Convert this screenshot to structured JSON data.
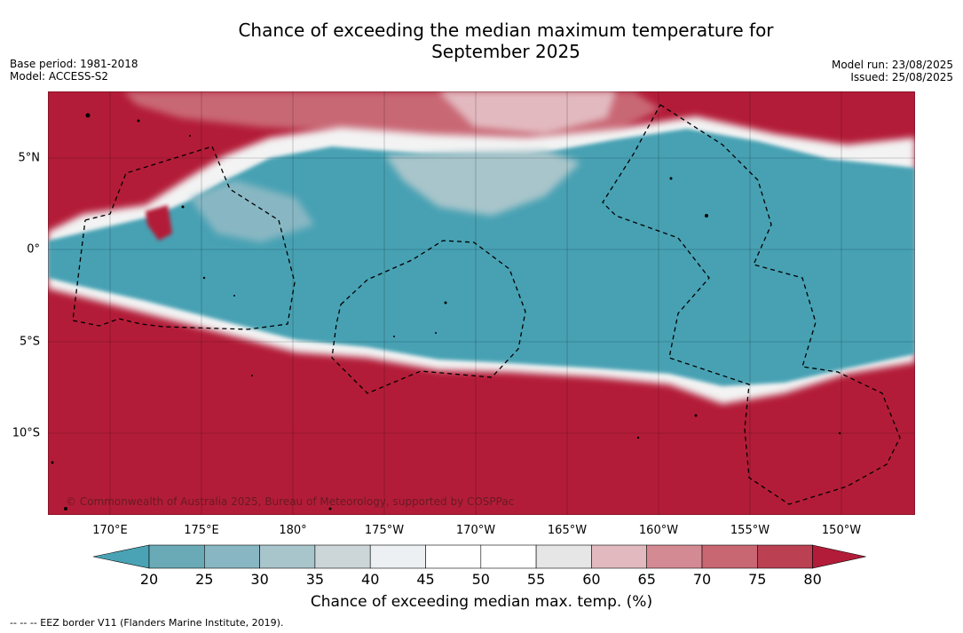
{
  "title_line1": "Chance of exceeding the median maximum temperature for",
  "title_line2": "September 2025",
  "meta_left": {
    "base_period": "Base period: 1981-2018",
    "model": "Model: ACCESS-S2"
  },
  "meta_right": {
    "model_run": "Model run: 23/08/2025",
    "issued": "Issued: 25/08/2025"
  },
  "copyright": "© Commonwealth of Australia 2025, Bureau of Meteorology, supported by COSPPac",
  "lon_ticks": [
    "170°E",
    "175°E",
    "180°",
    "175°W",
    "170°W",
    "165°W",
    "160°W",
    "155°W",
    "150°W"
  ],
  "lat_ticks": [
    "5°N",
    "0°",
    "5°S",
    "10°S"
  ],
  "colorbar": {
    "ticks": [
      "20",
      "25",
      "30",
      "35",
      "40",
      "45",
      "50",
      "55",
      "60",
      "65",
      "70",
      "75",
      "80"
    ],
    "label": "Chance of exceeding median max. temp. (%)",
    "colors": {
      "below": "#4aa3b5",
      "bins": [
        "#6aaab7",
        "#88b7c3",
        "#a8c5cb",
        "#ccd6d9",
        "#ecf0f2",
        "#ffffff",
        "#ffffff",
        "#e6e6e6",
        "#e2b9bf",
        "#d48a93",
        "#c86672",
        "#ba4052"
      ],
      "above": "#b31c38"
    }
  },
  "footnote": "--  --  -- EEZ border V11 (Flanders Marine Institute, 2019)."
}
